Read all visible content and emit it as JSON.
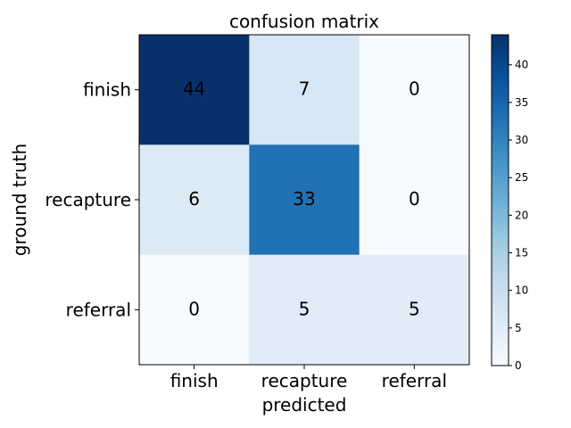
{
  "chart_data": {
    "type": "heatmap",
    "title": "confusion matrix",
    "xlabel": "predicted",
    "ylabel": "ground truth",
    "x_categories": [
      "finish",
      "recapture",
      "referral"
    ],
    "y_categories": [
      "finish",
      "recapture",
      "referral"
    ],
    "values": [
      [
        44,
        7,
        0
      ],
      [
        6,
        33,
        0
      ],
      [
        0,
        5,
        5
      ]
    ],
    "color_range": [
      0,
      44
    ],
    "colormap": "Blues",
    "colorbar_ticks": [
      0,
      5,
      10,
      15,
      20,
      25,
      30,
      35,
      40
    ]
  }
}
